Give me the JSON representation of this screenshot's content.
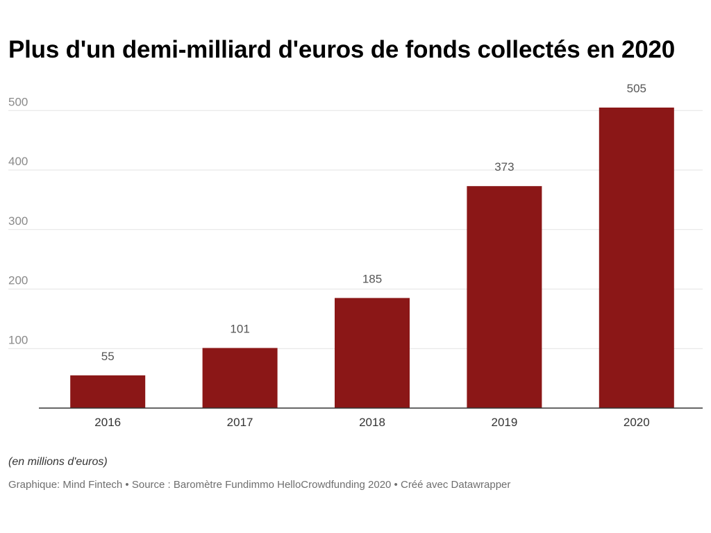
{
  "title": "Plus d'un demi-milliard d'euros de fonds collectés en 2020",
  "note": "(en millions d'euros)",
  "footer": {
    "credit": "Graphique: Mind Fintech",
    "source": "Source : Baromètre Fundimmo HelloCrowdfunding 2020",
    "tool": "Créé avec Datawrapper",
    "separator": " • "
  },
  "colors": {
    "bar": "#8b1717",
    "grid": "#e3e3e3",
    "axis": "#333333"
  },
  "chart_data": {
    "type": "bar",
    "title": "Plus d'un demi-milliard d'euros de fonds collectés en 2020",
    "xlabel": "",
    "ylabel": "",
    "categories": [
      "2016",
      "2017",
      "2018",
      "2019",
      "2020"
    ],
    "values": [
      55,
      101,
      185,
      373,
      505
    ],
    "data_labels": [
      "55",
      "101",
      "185",
      "373",
      "505"
    ],
    "yticks": [
      100,
      200,
      300,
      400,
      500
    ],
    "ylim": [
      0,
      505
    ],
    "grid": true,
    "legend": "none"
  }
}
